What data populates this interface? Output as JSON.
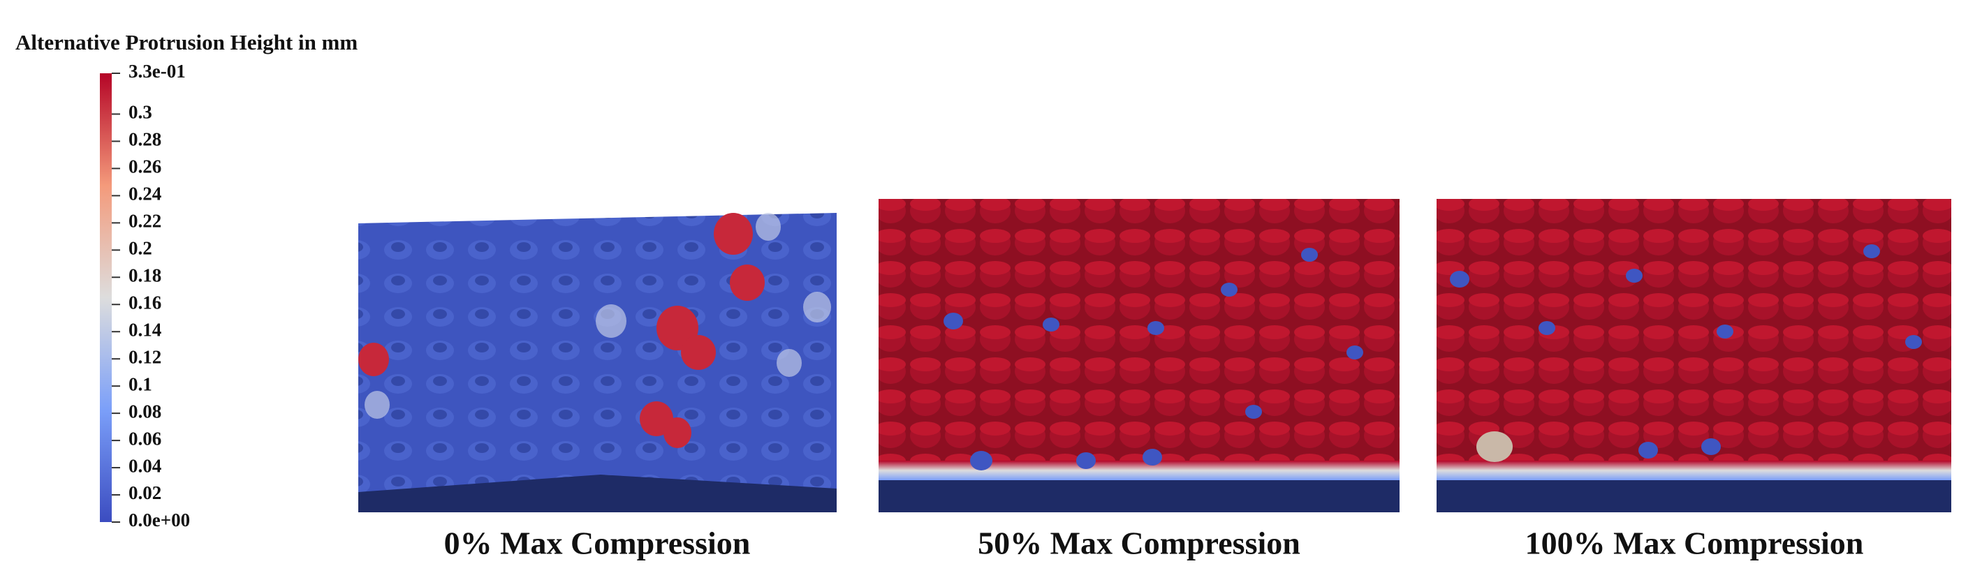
{
  "colorbar": {
    "title": "Alternative Protrusion Height in mm",
    "range": [
      0,
      0.33
    ],
    "ticks": [
      {
        "value": 0.33,
        "label": "3.3e-01"
      },
      0.3,
      0.28,
      0.26,
      0.24,
      0.22,
      0.2,
      0.18,
      0.16,
      0.14,
      0.12,
      0.1,
      0.08,
      0.06,
      0.04,
      0.02,
      {
        "value": 0,
        "label": "0.0e+00"
      }
    ]
  },
  "panels": [
    {
      "label": "0% Max Compression"
    },
    {
      "label": "50% Max Compression"
    },
    {
      "label": "100% Max Compression"
    }
  ]
}
